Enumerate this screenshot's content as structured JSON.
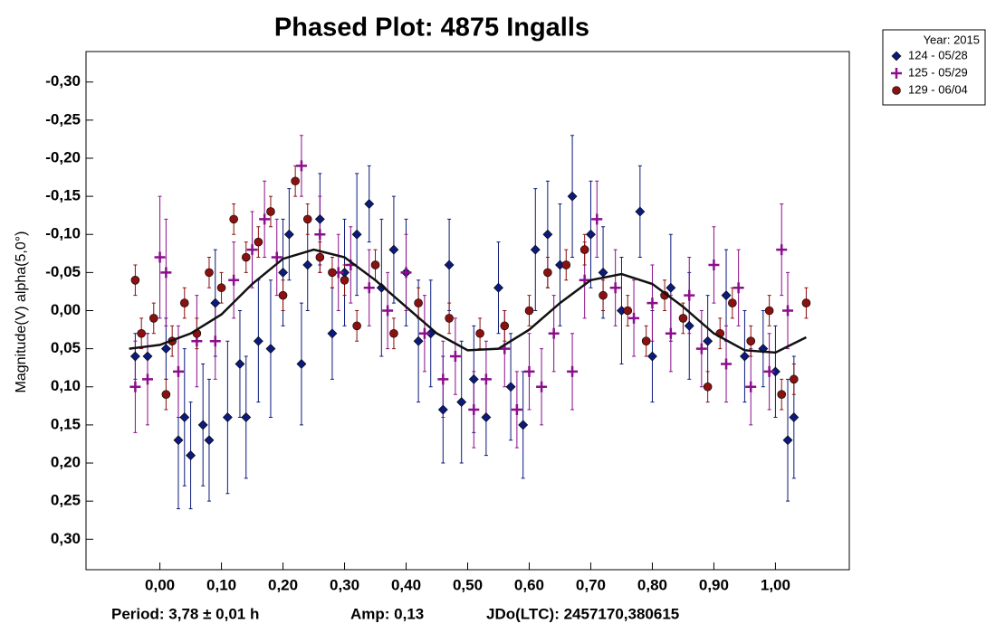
{
  "chart_data": {
    "type": "scatter",
    "title": "Phased Plot: 4875 Ingalls",
    "ylabel": "Magnitude(V) alpha(5,0°)",
    "footer": [
      "Period: 3,78 ± 0,01 h",
      "Amp: 0,13",
      "JDo(LTC): 2457170,380615"
    ],
    "legend_title": "Year: 2015",
    "legend": "outside-right-top",
    "grid": false,
    "xlim": [
      -0.12,
      1.12
    ],
    "ylim": [
      0.34,
      -0.34
    ],
    "xticks": [
      {
        "value": 0,
        "label": "0,00"
      },
      {
        "value": 0.1,
        "label": "0,10"
      },
      {
        "value": 0.2,
        "label": "0,20"
      },
      {
        "value": 0.3,
        "label": "0,30"
      },
      {
        "value": 0.4,
        "label": "0,40"
      },
      {
        "value": 0.5,
        "label": "0,50"
      },
      {
        "value": 0.6,
        "label": "0,60"
      },
      {
        "value": 0.7,
        "label": "0,70"
      },
      {
        "value": 0.8,
        "label": "0,80"
      },
      {
        "value": 0.9,
        "label": "0,90"
      },
      {
        "value": 1,
        "label": "1,00"
      }
    ],
    "yticks": [
      {
        "value": -0.3,
        "label": "-0,30"
      },
      {
        "value": -0.25,
        "label": "-0,25"
      },
      {
        "value": -0.2,
        "label": "-0,20"
      },
      {
        "value": -0.15,
        "label": "-0,15"
      },
      {
        "value": -0.1,
        "label": "-0,10"
      },
      {
        "value": -0.05,
        "label": "-0,05"
      },
      {
        "value": 0,
        "label": "0,00"
      },
      {
        "value": 0.05,
        "label": "0,05"
      },
      {
        "value": 0.1,
        "label": "0,10"
      },
      {
        "value": 0.15,
        "label": "0,15"
      },
      {
        "value": 0.2,
        "label": "0,20"
      },
      {
        "value": 0.25,
        "label": "0,25"
      },
      {
        "value": 0.3,
        "label": "0,30"
      }
    ],
    "series": [
      {
        "name": "124 - 05/28",
        "color": "#0c1a7a",
        "marker": "diamond",
        "x": [
          -0.04,
          -0.02,
          0.01,
          0.03,
          0.04,
          0.05,
          0.07,
          0.08,
          0.09,
          0.11,
          0.13,
          0.14,
          0.16,
          0.18,
          0.2,
          0.21,
          0.23,
          0.24,
          0.26,
          0.28,
          0.3,
          0.32,
          0.34,
          0.36,
          0.38,
          0.4,
          0.42,
          0.44,
          0.46,
          0.47,
          0.49,
          0.51,
          0.53,
          0.55,
          0.57,
          0.59,
          0.61,
          0.63,
          0.65,
          0.67,
          0.7,
          0.72,
          0.75,
          0.78,
          0.8,
          0.83,
          0.86,
          0.89,
          0.92,
          0.95,
          0.98,
          1.0,
          1.02,
          1.03
        ],
        "values": [
          0.06,
          0.06,
          0.05,
          0.17,
          0.14,
          0.19,
          0.15,
          0.17,
          -0.01,
          0.14,
          0.07,
          0.14,
          0.04,
          0.05,
          -0.05,
          -0.1,
          0.07,
          -0.06,
          -0.12,
          0.03,
          -0.05,
          -0.1,
          -0.14,
          -0.03,
          -0.08,
          -0.05,
          0.04,
          0.03,
          0.13,
          -0.06,
          0.12,
          0.09,
          0.14,
          -0.03,
          0.1,
          0.15,
          -0.08,
          -0.1,
          -0.06,
          -0.15,
          -0.1,
          -0.05,
          0,
          -0.13,
          0.06,
          -0.03,
          0.02,
          0.04,
          -0.02,
          0.06,
          0.05,
          0.08,
          0.17,
          0.14
        ],
        "errors": [
          0.03,
          0.03,
          0.04,
          0.09,
          0.09,
          0.07,
          0.08,
          0.08,
          0.07,
          0.1,
          0.07,
          0.08,
          0.08,
          0.09,
          0.07,
          0.06,
          0.08,
          0.06,
          0.06,
          0.06,
          0.07,
          0.08,
          0.05,
          0.09,
          0.07,
          0.07,
          0.08,
          0.07,
          0.07,
          0.06,
          0.08,
          0.07,
          0.05,
          0.06,
          0.07,
          0.07,
          0.08,
          0.07,
          0.08,
          0.08,
          0.07,
          0.06,
          0.07,
          0.06,
          0.06,
          0.07,
          0.07,
          0.06,
          0.06,
          0.06,
          0.05,
          0.06,
          0.08,
          0.08
        ]
      },
      {
        "name": "125 - 05/29",
        "color": "#8b0f8b",
        "marker": "plus",
        "x": [
          -0.04,
          -0.02,
          0,
          0.01,
          0.03,
          0.06,
          0.09,
          0.12,
          0.15,
          0.17,
          0.19,
          0.23,
          0.26,
          0.29,
          0.31,
          0.34,
          0.37,
          0.4,
          0.43,
          0.46,
          0.48,
          0.51,
          0.53,
          0.56,
          0.58,
          0.6,
          0.62,
          0.64,
          0.67,
          0.69,
          0.71,
          0.74,
          0.77,
          0.8,
          0.83,
          0.86,
          0.88,
          0.9,
          0.92,
          0.94,
          0.96,
          0.99,
          1.01,
          1.02
        ],
        "values": [
          0.1,
          0.09,
          -0.07,
          -0.05,
          0.08,
          0.04,
          0.04,
          -0.04,
          -0.08,
          -0.12,
          -0.07,
          -0.19,
          -0.1,
          -0.05,
          -0.06,
          -0.03,
          0,
          -0.05,
          0.03,
          0.09,
          0.06,
          0.13,
          0.09,
          0.05,
          0.13,
          0.08,
          0.1,
          0.03,
          0.08,
          -0.04,
          -0.12,
          -0.03,
          0.01,
          -0.01,
          0.03,
          -0.02,
          0.05,
          -0.06,
          0.07,
          -0.03,
          0.1,
          0.08,
          -0.08,
          0
        ],
        "errors": [
          0.06,
          0.06,
          0.08,
          0.07,
          0.06,
          0.06,
          0.05,
          0.05,
          0.05,
          0.05,
          0.05,
          0.04,
          0.05,
          0.05,
          0.05,
          0.05,
          0.05,
          0.05,
          0.05,
          0.05,
          0.05,
          0.05,
          0.05,
          0.05,
          0.05,
          0.05,
          0.05,
          0.05,
          0.05,
          0.05,
          0.05,
          0.05,
          0.05,
          0.05,
          0.05,
          0.05,
          0.05,
          0.05,
          0.05,
          0.05,
          0.05,
          0.05,
          0.06,
          0.05
        ]
      },
      {
        "name": "129 - 06/04",
        "color": "#8b1010",
        "marker": "circle",
        "x": [
          -0.04,
          -0.03,
          -0.01,
          0.01,
          0.02,
          0.04,
          0.06,
          0.08,
          0.1,
          0.12,
          0.14,
          0.16,
          0.18,
          0.2,
          0.22,
          0.24,
          0.26,
          0.28,
          0.3,
          0.32,
          0.35,
          0.38,
          0.42,
          0.47,
          0.52,
          0.56,
          0.6,
          0.63,
          0.66,
          0.69,
          0.72,
          0.76,
          0.79,
          0.82,
          0.85,
          0.89,
          0.91,
          0.93,
          0.96,
          0.99,
          1.01,
          1.03,
          1.05
        ],
        "values": [
          -0.04,
          0.03,
          0.01,
          0.11,
          0.04,
          -0.01,
          0.03,
          -0.05,
          -0.03,
          -0.12,
          -0.07,
          -0.09,
          -0.13,
          -0.02,
          -0.17,
          -0.12,
          -0.07,
          -0.05,
          -0.04,
          0.02,
          -0.06,
          0.03,
          -0.01,
          0.01,
          0.03,
          0.02,
          0,
          -0.05,
          -0.06,
          -0.08,
          -0.02,
          0,
          0.04,
          -0.02,
          0.01,
          0.1,
          0.03,
          -0.01,
          0.04,
          0,
          0.11,
          0.09,
          -0.01
        ],
        "errors": [
          0.02,
          0.02,
          0.02,
          0.02,
          0.02,
          0.02,
          0.02,
          0.02,
          0.02,
          0.02,
          0.02,
          0.02,
          0.02,
          0.02,
          0.02,
          0.02,
          0.02,
          0.02,
          0.02,
          0.02,
          0.02,
          0.02,
          0.02,
          0.02,
          0.02,
          0.02,
          0.02,
          0.02,
          0.02,
          0.02,
          0.02,
          0.02,
          0.02,
          0.02,
          0.02,
          0.02,
          0.02,
          0.02,
          0.02,
          0.02,
          0.02,
          0.02,
          0.02
        ]
      }
    ],
    "curve": {
      "color": "#111111",
      "x": [
        -0.05,
        0,
        0.05,
        0.1,
        0.15,
        0.2,
        0.25,
        0.3,
        0.35,
        0.4,
        0.45,
        0.5,
        0.55,
        0.6,
        0.65,
        0.7,
        0.75,
        0.8,
        0.85,
        0.9,
        0.95,
        1,
        1.05
      ],
      "values": [
        0.05,
        0.045,
        0.03,
        0.005,
        -0.035,
        -0.068,
        -0.08,
        -0.07,
        -0.04,
        -0.005,
        0.03,
        0.052,
        0.05,
        0.025,
        -0.01,
        -0.04,
        -0.048,
        -0.035,
        -0.005,
        0.03,
        0.052,
        0.055,
        0.035
      ]
    }
  }
}
